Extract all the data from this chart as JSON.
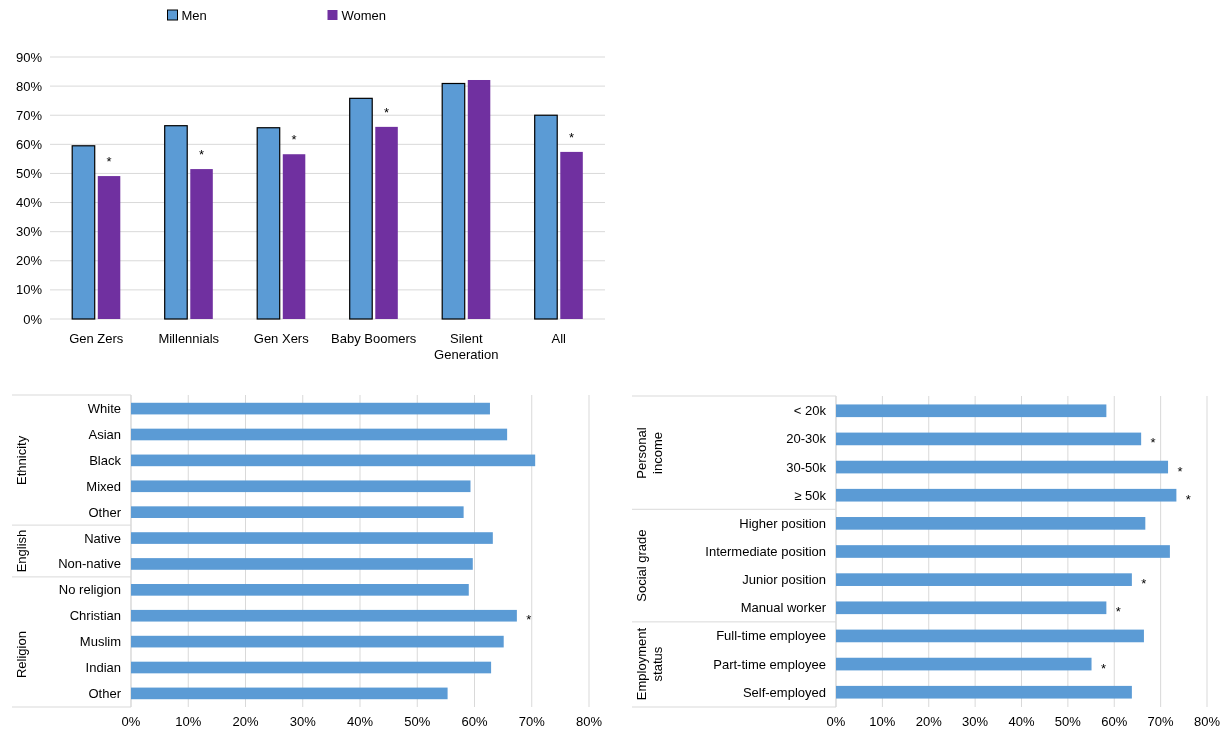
{
  "chart_data": [
    {
      "type": "bar",
      "categories": [
        "Gen Zers",
        "Millennials",
        "Gen Xers",
        "Baby Boomers",
        "Silent Generation",
        "All"
      ],
      "series": [
        {
          "name": "Men",
          "color": "#5b9bd5",
          "values": [
            59.5,
            66.4,
            65.7,
            75.8,
            80.9,
            70
          ]
        },
        {
          "name": "Women",
          "color": "#7030a0",
          "values": [
            49.1,
            51.5,
            56.6,
            66,
            82.1,
            57.4
          ]
        }
      ],
      "ylim": [
        0,
        90
      ],
      "yticks": [
        {
          "value": 0,
          "label": "0%"
        },
        {
          "value": 10,
          "label": "10%"
        },
        {
          "value": 20,
          "label": "20%"
        },
        {
          "value": 30,
          "label": "30%"
        },
        {
          "value": 40,
          "label": "40%"
        },
        {
          "value": 50,
          "label": "50%"
        },
        {
          "value": 60,
          "label": "60%"
        },
        {
          "value": 70,
          "label": "70%"
        },
        {
          "value": 80,
          "label": "80%"
        },
        {
          "value": 90,
          "label": "90%"
        }
      ],
      "grid": "y",
      "legend": "top",
      "annotations": [
        {
          "text": "*",
          "x": "Gen Zers",
          "y": 49.1
        },
        {
          "text": "*",
          "x": "Millennials",
          "y": 51.5
        },
        {
          "text": "*",
          "x": "Gen Xers",
          "y": 56.6
        },
        {
          "text": "*",
          "x": "Baby Boomers",
          "y": 66
        },
        {
          "text": "*",
          "x": "All",
          "y": 57.4
        }
      ]
    },
    {
      "type": "bar",
      "orientation": "horizontal",
      "categories": [
        "White",
        "Asian",
        "Black",
        "Mixed",
        "Other",
        "Native",
        "Non-native",
        "No religion",
        "Christian",
        "Muslim",
        "Indian",
        "Other"
      ],
      "values": [
        62.7,
        65.7,
        70.6,
        59.3,
        58.1,
        63.2,
        59.7,
        59,
        67.4,
        65.1,
        62.9,
        55.3
      ],
      "color": "#5b9bd5",
      "xlim": [
        0,
        80
      ],
      "xticks": [
        {
          "value": 0,
          "label": "0%"
        },
        {
          "value": 10,
          "label": "10%"
        },
        {
          "value": 20,
          "label": "20%"
        },
        {
          "value": 30,
          "label": "30%"
        },
        {
          "value": 40,
          "label": "40%"
        },
        {
          "value": 50,
          "label": "50%"
        },
        {
          "value": 60,
          "label": "60%"
        },
        {
          "value": 70,
          "label": "70%"
        },
        {
          "value": 80,
          "label": "80%"
        }
      ],
      "grid": "x",
      "annotations": [
        "Ethnicity",
        "English",
        "Religion",
        {
          "text": "*",
          "x": 67.4,
          "y": "Christian"
        }
      ]
    },
    {
      "type": "bar",
      "orientation": "horizontal",
      "categories": [
        "< 20k",
        "20-30k",
        "30-50k",
        "≥ 50k",
        "Higher position",
        "Intermediate position",
        "Junior position",
        "Manual worker",
        "Full-time employee",
        "Part-time employee",
        "Self-employed"
      ],
      "values": [
        58.3,
        65.8,
        71.6,
        73.4,
        66.7,
        72,
        63.8,
        58.3,
        66.4,
        55.1,
        63.8
      ],
      "color": "#5b9bd5",
      "xlim": [
        0,
        80
      ],
      "xticks": [
        {
          "value": 0,
          "label": "0%"
        },
        {
          "value": 10,
          "label": "10%"
        },
        {
          "value": 20,
          "label": "20%"
        },
        {
          "value": 30,
          "label": "30%"
        },
        {
          "value": 40,
          "label": "40%"
        },
        {
          "value": 50,
          "label": "50%"
        },
        {
          "value": 60,
          "label": "60%"
        },
        {
          "value": 70,
          "label": "70%"
        },
        {
          "value": 80,
          "label": "80%"
        }
      ],
      "grid": "x",
      "annotations": [
        "Personal income",
        "Social grade",
        "Employment status",
        {
          "text": "*",
          "x": 65.8,
          "y": "20-30k"
        },
        {
          "text": "*",
          "x": 71.6,
          "y": "30-50k"
        },
        {
          "text": "*",
          "x": 73.4,
          "y": "≥ 50k"
        },
        {
          "text": "*",
          "x": 63.8,
          "y": "Junior position"
        },
        {
          "text": "*",
          "x": 58.3,
          "y": "Manual worker"
        },
        {
          "text": "*",
          "x": 55.1,
          "y": "Part-time employee"
        }
      ]
    }
  ]
}
